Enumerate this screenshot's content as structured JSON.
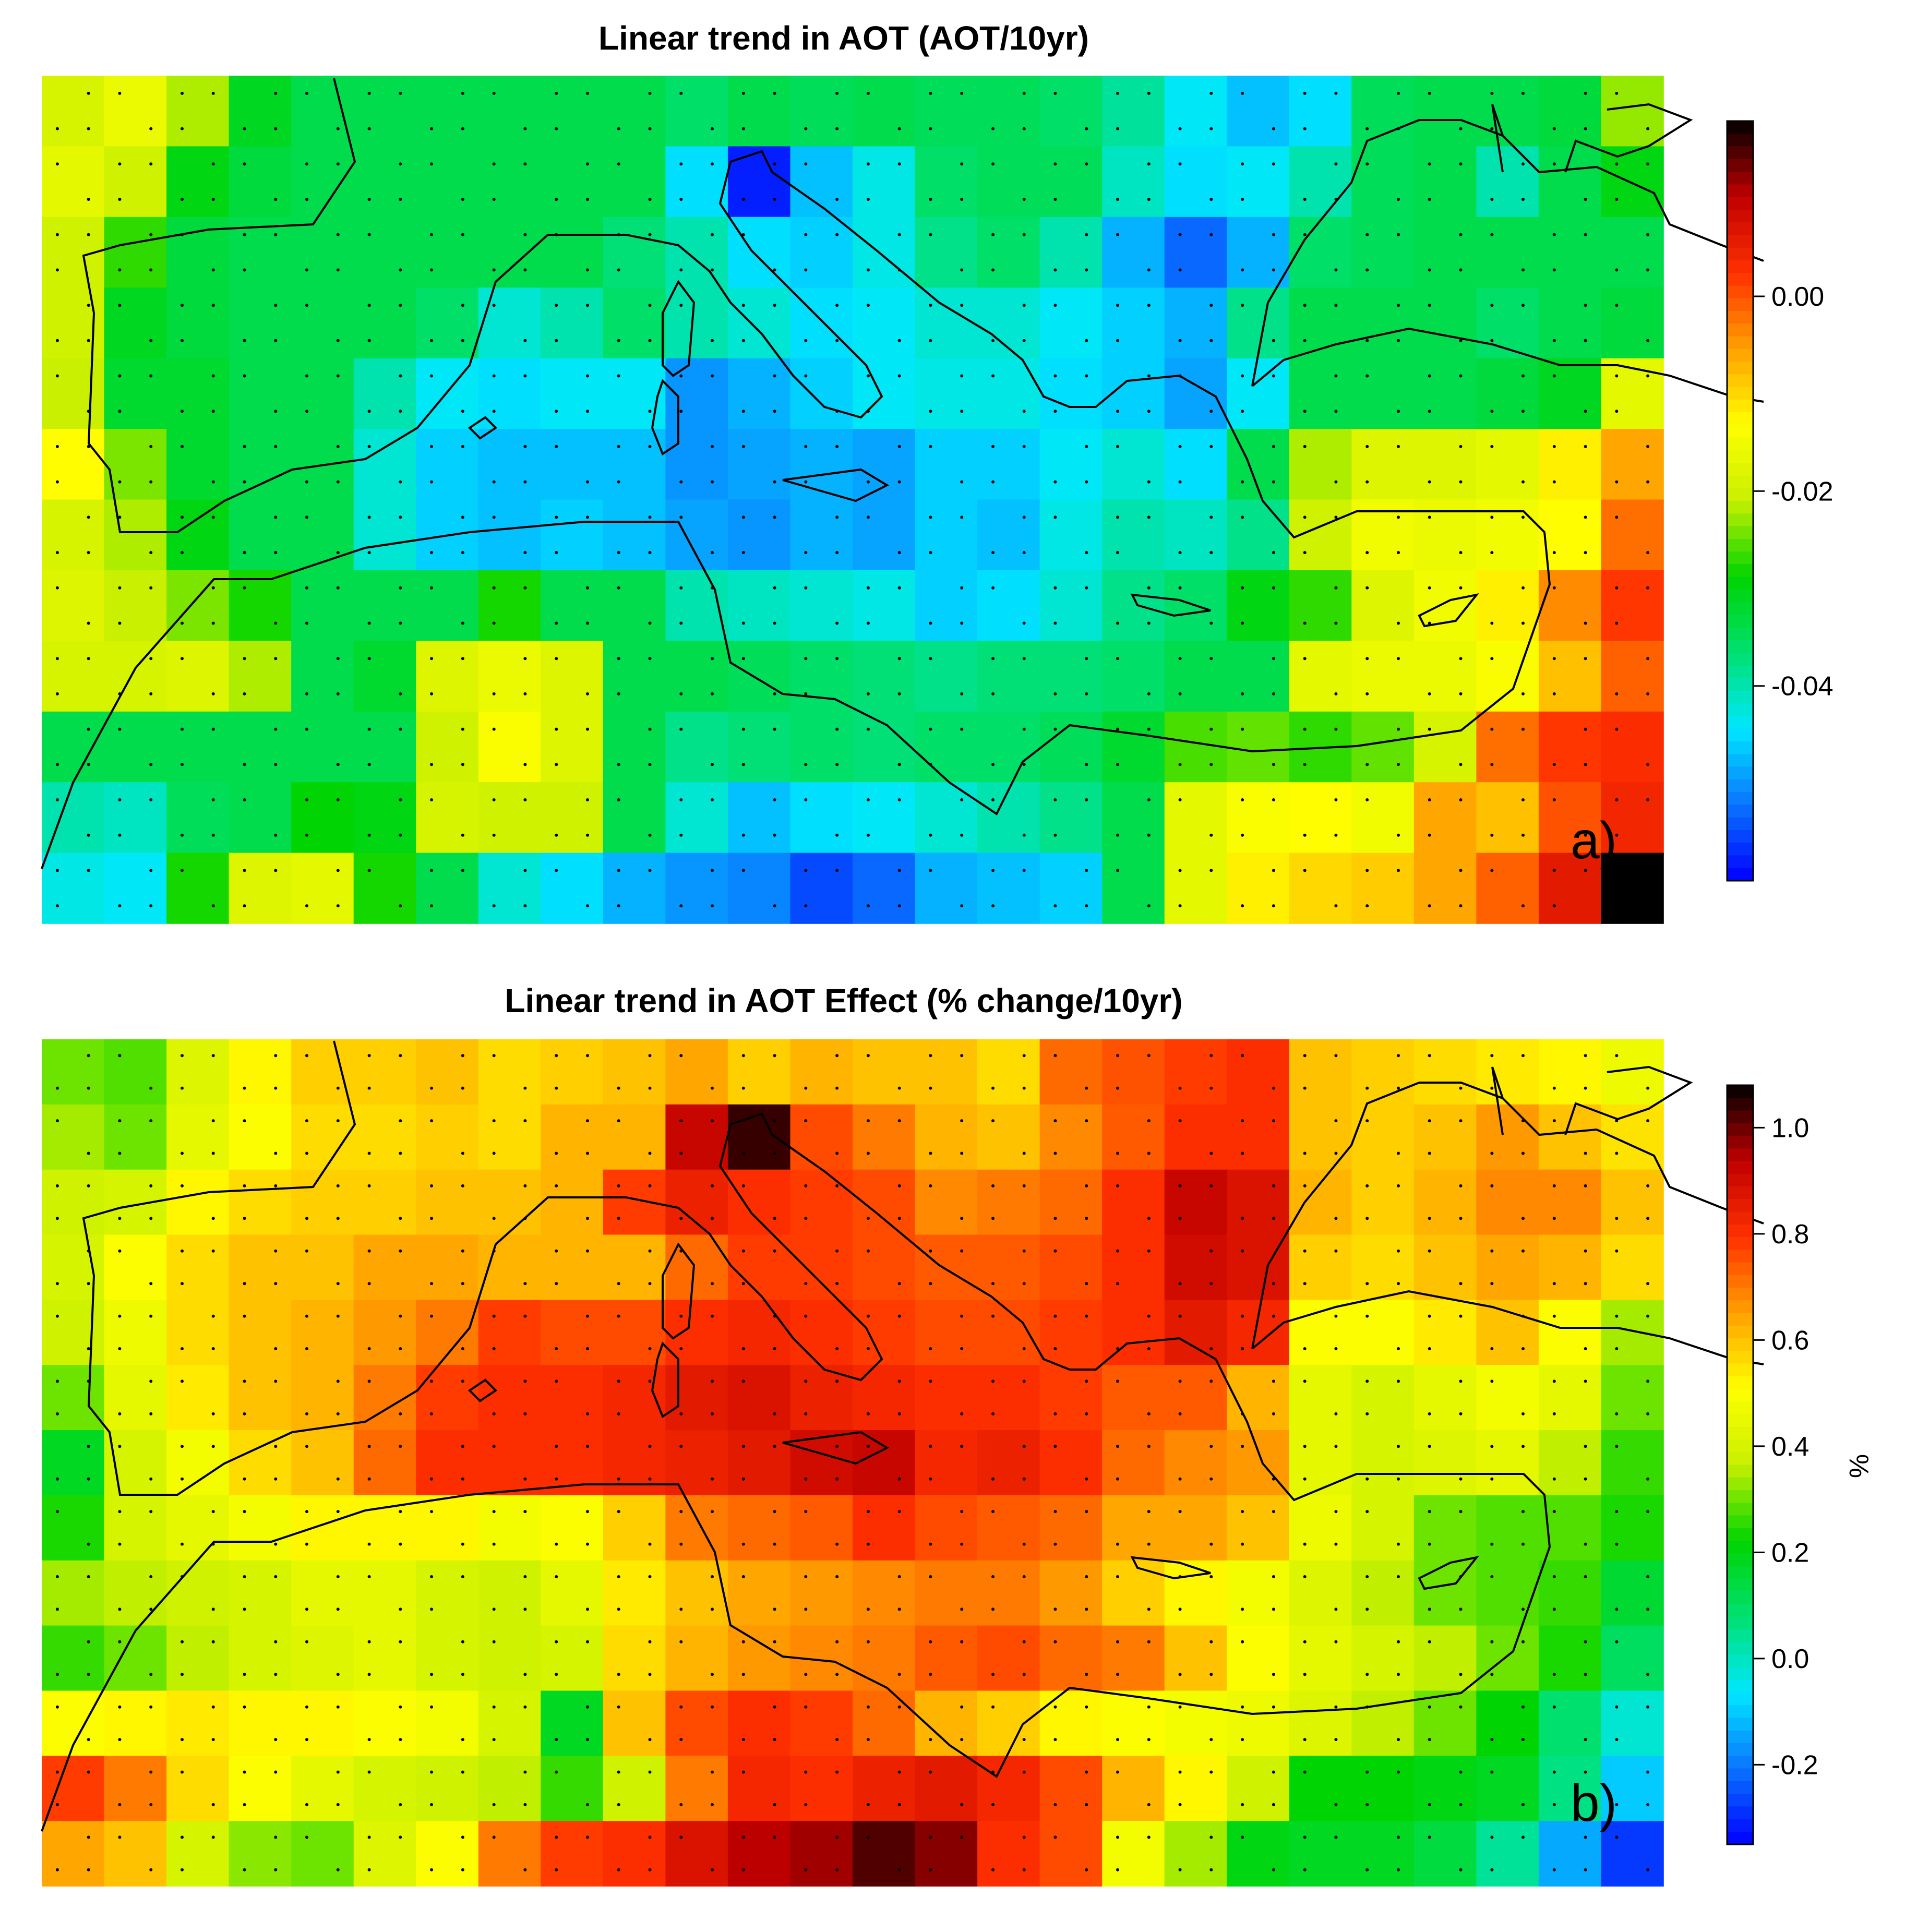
{
  "chart_data": [
    {
      "type": "heatmap",
      "title": "Linear trend in AOT (AOT/10yr)",
      "panel_label": "a)",
      "colorbar_ticks": [
        "0.00",
        "-0.02",
        "-0.04"
      ],
      "colorbar_tick_values": [
        0.0,
        -0.02,
        -0.04
      ],
      "colorbar_range": [
        -0.06,
        0.018
      ],
      "colorbar_colors": [
        "#0000ff",
        "#0a74ff",
        "#00e8ff",
        "#00e070",
        "#00d400",
        "#c8f000",
        "#ffff00",
        "#ffa000",
        "#ff3000",
        "#c00000",
        "#000000"
      ],
      "grid": [
        [
          -0.019,
          -0.016,
          -0.022,
          -0.031,
          -0.034,
          -0.034,
          -0.034,
          -0.034,
          -0.034,
          -0.034,
          -0.036,
          -0.034,
          -0.035,
          -0.034,
          -0.035,
          -0.035,
          -0.036,
          -0.039,
          -0.044,
          -0.047,
          -0.045,
          -0.035,
          -0.034,
          -0.034,
          -0.033,
          -0.023
        ],
        [
          -0.017,
          -0.02,
          -0.03,
          -0.033,
          -0.034,
          -0.034,
          -0.034,
          -0.034,
          -0.034,
          -0.034,
          -0.045,
          -0.058,
          -0.047,
          -0.043,
          -0.036,
          -0.035,
          -0.035,
          -0.041,
          -0.045,
          -0.044,
          -0.04,
          -0.035,
          -0.034,
          -0.04,
          -0.034,
          -0.03
        ],
        [
          -0.02,
          -0.027,
          -0.033,
          -0.034,
          -0.034,
          -0.034,
          -0.034,
          -0.034,
          -0.034,
          -0.037,
          -0.04,
          -0.045,
          -0.046,
          -0.043,
          -0.038,
          -0.036,
          -0.04,
          -0.048,
          -0.053,
          -0.048,
          -0.036,
          -0.035,
          -0.034,
          -0.034,
          -0.034,
          -0.034
        ],
        [
          -0.02,
          -0.031,
          -0.033,
          -0.034,
          -0.034,
          -0.034,
          -0.036,
          -0.042,
          -0.04,
          -0.036,
          -0.04,
          -0.042,
          -0.045,
          -0.044,
          -0.042,
          -0.042,
          -0.044,
          -0.046,
          -0.048,
          -0.038,
          -0.034,
          -0.034,
          -0.034,
          -0.036,
          -0.034,
          -0.033
        ],
        [
          -0.021,
          -0.032,
          -0.032,
          -0.034,
          -0.034,
          -0.04,
          -0.044,
          -0.045,
          -0.044,
          -0.044,
          -0.05,
          -0.048,
          -0.046,
          -0.044,
          -0.043,
          -0.043,
          -0.045,
          -0.046,
          -0.049,
          -0.044,
          -0.034,
          -0.034,
          -0.034,
          -0.033,
          -0.031,
          -0.017
        ],
        [
          -0.013,
          -0.024,
          -0.032,
          -0.034,
          -0.034,
          -0.042,
          -0.046,
          -0.047,
          -0.047,
          -0.047,
          -0.05,
          -0.049,
          -0.048,
          -0.049,
          -0.046,
          -0.046,
          -0.044,
          -0.042,
          -0.045,
          -0.034,
          -0.022,
          -0.018,
          -0.018,
          -0.017,
          -0.012,
          -0.006
        ],
        [
          -0.019,
          -0.022,
          -0.03,
          -0.034,
          -0.034,
          -0.042,
          -0.046,
          -0.047,
          -0.046,
          -0.047,
          -0.049,
          -0.05,
          -0.048,
          -0.049,
          -0.046,
          -0.047,
          -0.043,
          -0.04,
          -0.041,
          -0.038,
          -0.02,
          -0.015,
          -0.016,
          -0.015,
          -0.013,
          -0.002
        ],
        [
          -0.018,
          -0.021,
          -0.024,
          -0.028,
          -0.034,
          -0.034,
          -0.034,
          -0.028,
          -0.034,
          -0.034,
          -0.04,
          -0.041,
          -0.042,
          -0.043,
          -0.046,
          -0.045,
          -0.042,
          -0.038,
          -0.036,
          -0.03,
          -0.027,
          -0.018,
          -0.015,
          -0.012,
          -0.004,
          0.002
        ],
        [
          -0.019,
          -0.019,
          -0.018,
          -0.022,
          -0.034,
          -0.032,
          -0.018,
          -0.016,
          -0.018,
          -0.034,
          -0.034,
          -0.035,
          -0.036,
          -0.037,
          -0.038,
          -0.037,
          -0.037,
          -0.036,
          -0.034,
          -0.034,
          -0.017,
          -0.016,
          -0.016,
          -0.014,
          -0.008,
          -0.001
        ],
        [
          -0.034,
          -0.034,
          -0.034,
          -0.034,
          -0.034,
          -0.034,
          -0.02,
          -0.014,
          -0.018,
          -0.034,
          -0.038,
          -0.037,
          -0.036,
          -0.037,
          -0.036,
          -0.036,
          -0.035,
          -0.032,
          -0.026,
          -0.025,
          -0.027,
          -0.025,
          -0.019,
          -0.002,
          0.002,
          0.003
        ],
        [
          -0.04,
          -0.041,
          -0.035,
          -0.034,
          -0.029,
          -0.03,
          -0.019,
          -0.02,
          -0.02,
          -0.034,
          -0.042,
          -0.047,
          -0.045,
          -0.044,
          -0.042,
          -0.04,
          -0.038,
          -0.034,
          -0.017,
          -0.014,
          -0.013,
          -0.015,
          -0.006,
          -0.008,
          0.0,
          0.004
        ],
        [
          -0.043,
          -0.044,
          -0.028,
          -0.018,
          -0.017,
          -0.028,
          -0.034,
          -0.042,
          -0.045,
          -0.048,
          -0.05,
          -0.051,
          -0.055,
          -0.053,
          -0.048,
          -0.047,
          -0.046,
          -0.034,
          -0.017,
          -0.012,
          -0.01,
          -0.009,
          -0.006,
          -0.001,
          0.006,
          0.018
        ]
      ]
    },
    {
      "type": "heatmap",
      "title": "Linear trend in AOT Effect (% change/10yr)",
      "panel_label": "b)",
      "colorbar_ticks": [
        "1.0",
        "0.8",
        "0.6",
        "0.4",
        "0.2",
        "0.0",
        "-0.2"
      ],
      "colorbar_tick_values": [
        1.0,
        0.8,
        0.6,
        0.4,
        0.2,
        0.0,
        -0.2
      ],
      "colorbar_unit": "%",
      "colorbar_range": [
        -0.35,
        1.08
      ],
      "colorbar_colors": [
        "#0000ff",
        "#0a74ff",
        "#00e8ff",
        "#00e070",
        "#00d400",
        "#c8f000",
        "#ffff00",
        "#ffa000",
        "#ff3000",
        "#c00000",
        "#000000"
      ],
      "grid": [
        [
          0.3,
          0.28,
          0.42,
          0.52,
          0.58,
          0.58,
          0.6,
          0.56,
          0.58,
          0.6,
          0.64,
          0.58,
          0.62,
          0.6,
          0.6,
          0.56,
          0.72,
          0.75,
          0.78,
          0.8,
          0.6,
          0.58,
          0.56,
          0.54,
          0.52,
          0.46
        ],
        [
          0.34,
          0.3,
          0.44,
          0.5,
          0.56,
          0.56,
          0.58,
          0.56,
          0.62,
          0.62,
          0.92,
          1.04,
          0.76,
          0.7,
          0.62,
          0.6,
          0.68,
          0.74,
          0.8,
          0.8,
          0.6,
          0.58,
          0.6,
          0.66,
          0.6,
          0.55
        ],
        [
          0.38,
          0.4,
          0.52,
          0.56,
          0.58,
          0.58,
          0.6,
          0.6,
          0.62,
          0.78,
          0.84,
          0.8,
          0.78,
          0.76,
          0.68,
          0.7,
          0.72,
          0.8,
          0.92,
          0.88,
          0.62,
          0.58,
          0.62,
          0.68,
          0.68,
          0.6
        ],
        [
          0.4,
          0.5,
          0.56,
          0.6,
          0.6,
          0.64,
          0.64,
          0.62,
          0.62,
          0.62,
          0.72,
          0.78,
          0.78,
          0.76,
          0.74,
          0.74,
          0.76,
          0.8,
          0.9,
          0.88,
          0.58,
          0.56,
          0.6,
          0.64,
          0.62,
          0.56
        ],
        [
          0.38,
          0.46,
          0.56,
          0.6,
          0.62,
          0.66,
          0.7,
          0.78,
          0.76,
          0.76,
          0.8,
          0.82,
          0.8,
          0.78,
          0.76,
          0.76,
          0.78,
          0.8,
          0.86,
          0.82,
          0.5,
          0.5,
          0.54,
          0.6,
          0.5,
          0.34
        ],
        [
          0.3,
          0.44,
          0.54,
          0.6,
          0.62,
          0.7,
          0.78,
          0.8,
          0.8,
          0.82,
          0.86,
          0.88,
          0.84,
          0.82,
          0.8,
          0.8,
          0.78,
          0.74,
          0.74,
          0.62,
          0.44,
          0.4,
          0.44,
          0.48,
          0.44,
          0.3
        ],
        [
          0.18,
          0.4,
          0.48,
          0.56,
          0.6,
          0.72,
          0.8,
          0.8,
          0.8,
          0.82,
          0.84,
          0.86,
          0.9,
          0.92,
          0.82,
          0.84,
          0.8,
          0.72,
          0.68,
          0.66,
          0.44,
          0.4,
          0.42,
          0.44,
          0.36,
          0.26
        ],
        [
          0.24,
          0.4,
          0.44,
          0.48,
          0.52,
          0.52,
          0.52,
          0.48,
          0.5,
          0.58,
          0.7,
          0.72,
          0.74,
          0.8,
          0.76,
          0.74,
          0.72,
          0.64,
          0.64,
          0.6,
          0.46,
          0.4,
          0.3,
          0.28,
          0.28,
          0.24
        ],
        [
          0.34,
          0.36,
          0.38,
          0.4,
          0.44,
          0.44,
          0.4,
          0.38,
          0.44,
          0.54,
          0.6,
          0.64,
          0.66,
          0.68,
          0.7,
          0.7,
          0.66,
          0.58,
          0.52,
          0.48,
          0.42,
          0.36,
          0.3,
          0.28,
          0.26,
          0.16
        ],
        [
          0.26,
          0.3,
          0.36,
          0.4,
          0.42,
          0.44,
          0.4,
          0.38,
          0.4,
          0.56,
          0.62,
          0.66,
          0.68,
          0.7,
          0.74,
          0.76,
          0.72,
          0.7,
          0.6,
          0.5,
          0.44,
          0.4,
          0.36,
          0.3,
          0.24,
          0.1
        ],
        [
          0.5,
          0.52,
          0.54,
          0.52,
          0.52,
          0.5,
          0.48,
          0.4,
          0.18,
          0.6,
          0.76,
          0.8,
          0.78,
          0.72,
          0.62,
          0.58,
          0.52,
          0.5,
          0.48,
          0.46,
          0.42,
          0.36,
          0.3,
          0.22,
          0.08,
          -0.02
        ],
        [
          0.78,
          0.7,
          0.56,
          0.5,
          0.44,
          0.4,
          0.38,
          0.36,
          0.26,
          0.38,
          0.7,
          0.82,
          0.8,
          0.84,
          0.86,
          0.82,
          0.76,
          0.62,
          0.52,
          0.38,
          0.22,
          0.22,
          0.2,
          0.18,
          0.06,
          -0.1
        ],
        [
          0.64,
          0.6,
          0.4,
          0.32,
          0.3,
          0.42,
          0.5,
          0.7,
          0.78,
          0.8,
          0.88,
          0.94,
          0.96,
          1.02,
          0.98,
          0.8,
          0.76,
          0.48,
          0.34,
          0.2,
          0.18,
          0.18,
          0.14,
          0.04,
          -0.14,
          -0.28
        ]
      ]
    }
  ]
}
